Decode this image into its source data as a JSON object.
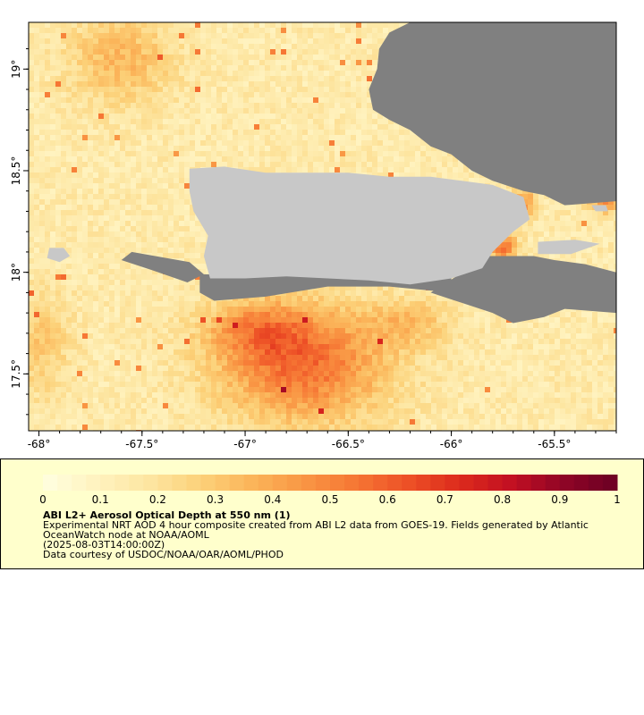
{
  "map": {
    "lon_range": [
      -68.05,
      -65.2
    ],
    "lat_range": [
      17.22,
      19.23
    ],
    "lon_ticks": [
      {
        "value": -68.0,
        "label": "-68°"
      },
      {
        "value": -67.5,
        "label": "-67.5°"
      },
      {
        "value": -67.0,
        "label": "-67°"
      },
      {
        "value": -66.5,
        "label": "-66.5°"
      },
      {
        "value": -66.0,
        "label": "-66°"
      },
      {
        "value": -65.5,
        "label": "-65.5°"
      }
    ],
    "lat_ticks": [
      {
        "value": 19.0,
        "label": "19°"
      },
      {
        "value": 18.5,
        "label": "18.5°"
      },
      {
        "value": 18.0,
        "label": "18°"
      },
      {
        "value": 17.5,
        "label": "17.5°"
      }
    ],
    "colors": {
      "land": "#c8c8c8",
      "no_data": "#808080",
      "frame": "#000000"
    },
    "landmasses": [
      {
        "name": "Puerto Rico",
        "outline": [
          [
            -67.27,
            18.51
          ],
          [
            -67.1,
            18.52
          ],
          [
            -66.9,
            18.49
          ],
          [
            -66.7,
            18.49
          ],
          [
            -66.5,
            18.49
          ],
          [
            -66.3,
            18.47
          ],
          [
            -66.1,
            18.47
          ],
          [
            -65.95,
            18.45
          ],
          [
            -65.8,
            18.43
          ],
          [
            -65.65,
            18.37
          ],
          [
            -65.62,
            18.26
          ],
          [
            -65.7,
            18.2
          ],
          [
            -65.8,
            18.1
          ],
          [
            -65.85,
            18.02
          ],
          [
            -66.0,
            17.97
          ],
          [
            -66.2,
            17.94
          ],
          [
            -66.4,
            17.96
          ],
          [
            -66.6,
            17.97
          ],
          [
            -66.8,
            17.98
          ],
          [
            -67.0,
            17.97
          ],
          [
            -67.17,
            17.97
          ],
          [
            -67.2,
            18.08
          ],
          [
            -67.18,
            18.18
          ],
          [
            -67.25,
            18.3
          ],
          [
            -67.27,
            18.4
          ]
        ]
      },
      {
        "name": "Mona",
        "outline": [
          [
            -67.95,
            18.12
          ],
          [
            -67.88,
            18.12
          ],
          [
            -67.85,
            18.08
          ],
          [
            -67.9,
            18.05
          ],
          [
            -67.96,
            18.07
          ]
        ]
      },
      {
        "name": "Vieques",
        "outline": [
          [
            -65.58,
            18.15
          ],
          [
            -65.4,
            18.16
          ],
          [
            -65.28,
            18.14
          ],
          [
            -65.42,
            18.09
          ],
          [
            -65.58,
            18.09
          ]
        ]
      },
      {
        "name": "Culebra",
        "outline": [
          [
            -65.32,
            18.33
          ],
          [
            -65.25,
            18.33
          ],
          [
            -65.24,
            18.3
          ],
          [
            -65.3,
            18.3
          ]
        ]
      }
    ],
    "no_data_regions": [
      {
        "name": "northeast",
        "outline": [
          [
            -66.2,
            19.23
          ],
          [
            -65.2,
            19.23
          ],
          [
            -65.2,
            18.35
          ],
          [
            -65.45,
            18.33
          ],
          [
            -65.55,
            18.38
          ],
          [
            -65.65,
            18.4
          ],
          [
            -65.8,
            18.45
          ],
          [
            -65.9,
            18.5
          ],
          [
            -66.0,
            18.58
          ],
          [
            -66.1,
            18.62
          ],
          [
            -66.2,
            18.7
          ],
          [
            -66.3,
            18.75
          ],
          [
            -66.38,
            18.8
          ],
          [
            -66.4,
            18.9
          ],
          [
            -66.36,
            19.0
          ],
          [
            -66.35,
            19.1
          ],
          [
            -66.3,
            19.18
          ]
        ]
      },
      {
        "name": "southeast",
        "outline": [
          [
            -65.82,
            18.08
          ],
          [
            -65.6,
            18.08
          ],
          [
            -65.5,
            18.06
          ],
          [
            -65.35,
            18.04
          ],
          [
            -65.2,
            18.0
          ],
          [
            -65.2,
            17.8
          ],
          [
            -65.45,
            17.82
          ],
          [
            -65.55,
            17.78
          ],
          [
            -65.7,
            17.75
          ],
          [
            -65.8,
            17.8
          ],
          [
            -65.95,
            17.85
          ],
          [
            -66.1,
            17.9
          ]
        ]
      },
      {
        "name": "southcoast",
        "outline": [
          [
            -67.22,
            17.99
          ],
          [
            -66.0,
            17.98
          ],
          [
            -66.0,
            17.9
          ],
          [
            -66.3,
            17.93
          ],
          [
            -66.6,
            17.93
          ],
          [
            -66.9,
            17.88
          ],
          [
            -67.15,
            17.86
          ],
          [
            -67.22,
            17.9
          ]
        ]
      },
      {
        "name": "westcoast",
        "outline": [
          [
            -67.55,
            18.1
          ],
          [
            -67.27,
            18.05
          ],
          [
            -67.2,
            17.99
          ],
          [
            -67.28,
            17.95
          ],
          [
            -67.45,
            18.01
          ],
          [
            -67.6,
            18.06
          ]
        ]
      }
    ],
    "hotspots": [
      {
        "lon": -66.72,
        "lat": 17.55,
        "rx": 0.4,
        "ry": 0.28,
        "amp": 0.42
      },
      {
        "lon": -66.95,
        "lat": 17.72,
        "rx": 0.25,
        "ry": 0.14,
        "amp": 0.22
      },
      {
        "lon": -67.6,
        "lat": 19.05,
        "rx": 0.25,
        "ry": 0.22,
        "amp": 0.2
      },
      {
        "lon": -66.2,
        "lat": 17.75,
        "rx": 0.2,
        "ry": 0.12,
        "amp": 0.16
      },
      {
        "lon": -65.75,
        "lat": 18.12,
        "rx": 0.07,
        "ry": 0.06,
        "amp": 0.42
      },
      {
        "lon": -65.65,
        "lat": 18.34,
        "rx": 0.06,
        "ry": 0.08,
        "amp": 0.3
      },
      {
        "lon": -65.25,
        "lat": 18.35,
        "rx": 0.08,
        "ry": 0.06,
        "amp": 0.3
      },
      {
        "lon": -68.0,
        "lat": 17.65,
        "rx": 0.15,
        "ry": 0.25,
        "amp": 0.15
      }
    ],
    "base_aod": 0.15
  },
  "legend": {
    "tick_labels": [
      "0",
      "0.1",
      "0.2",
      "0.3",
      "0.4",
      "0.5",
      "0.6",
      "0.7",
      "0.8",
      "0.9",
      "1"
    ],
    "color_stops": [
      "#ffffe0",
      "#fff3c0",
      "#fde6a2",
      "#fcd27a",
      "#fbb55a",
      "#f99644",
      "#f67634",
      "#ed5026",
      "#dc2a1c",
      "#c10f22",
      "#8e0526",
      "#6b0024"
    ],
    "title": "ABI L2+ Aerosol Optical Depth at 550 nm (1)",
    "description": "Experimental NRT AOD 4 hour composite created from ABI L2 data from GOES-19. Fields generated by Atlantic\nOceanWatch node at NOAA/AOML\n(2025-08-03T14:00:00Z)\nData courtesy of USDOC/NOAA/OAR/AOML/PHOD"
  }
}
